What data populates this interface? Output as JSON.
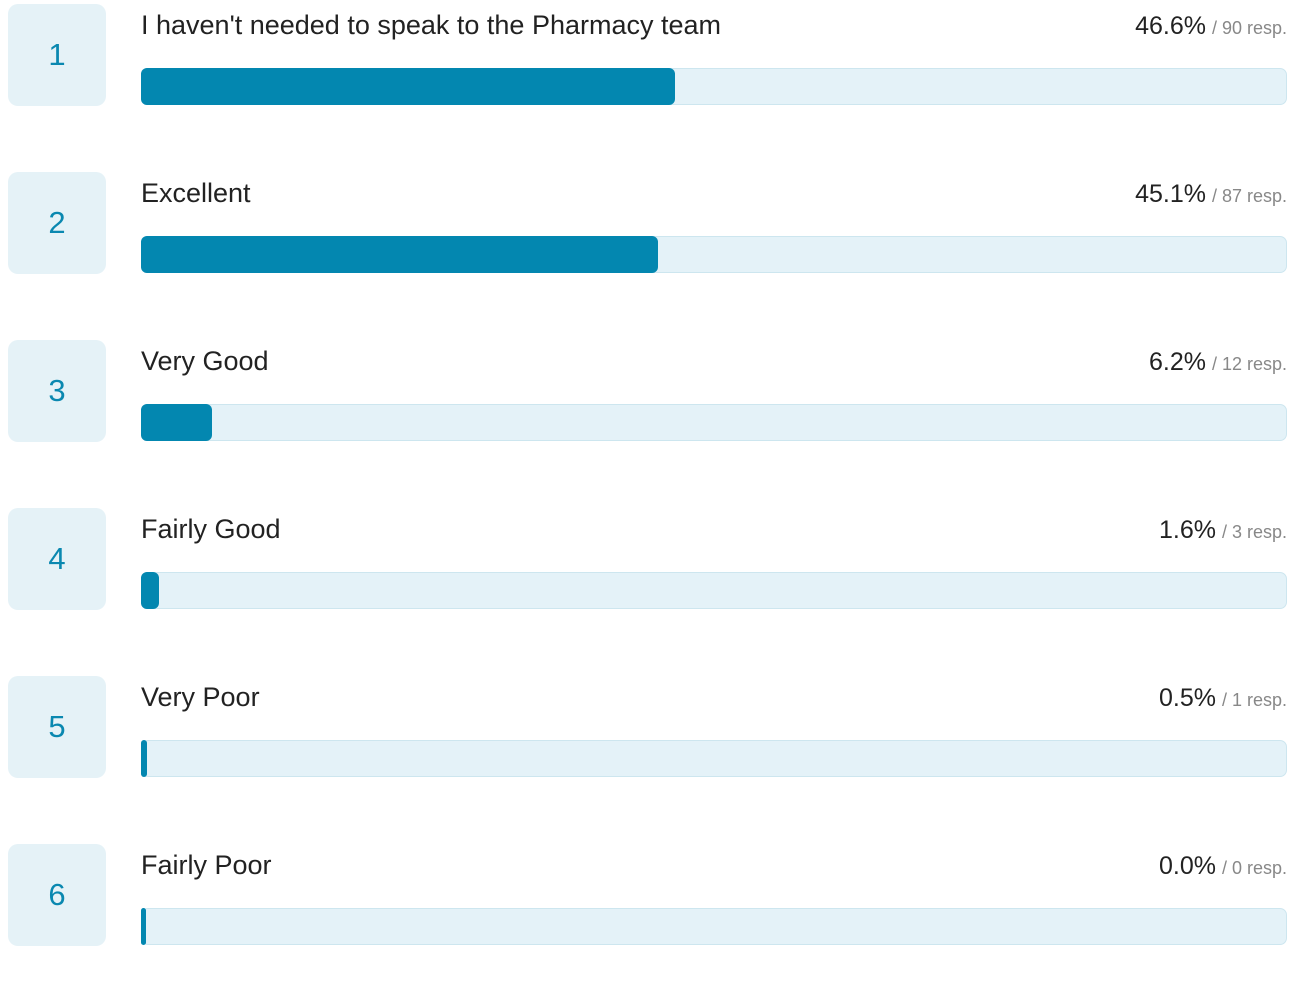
{
  "items": [
    {
      "rank": 1,
      "label": "I haven't needed to speak to the Pharmacy team",
      "percent": 46.6,
      "percent_label": "46.6%",
      "responses": 90,
      "responses_label": "/ 90 resp."
    },
    {
      "rank": 2,
      "label": "Excellent",
      "percent": 45.1,
      "percent_label": "45.1%",
      "responses": 87,
      "responses_label": "/ 87 resp."
    },
    {
      "rank": 3,
      "label": "Very Good",
      "percent": 6.2,
      "percent_label": "6.2%",
      "responses": 12,
      "responses_label": "/ 12 resp."
    },
    {
      "rank": 4,
      "label": "Fairly Good",
      "percent": 1.6,
      "percent_label": "1.6%",
      "responses": 3,
      "responses_label": "/ 3 resp."
    },
    {
      "rank": 5,
      "label": "Very Poor",
      "percent": 0.5,
      "percent_label": "0.5%",
      "responses": 1,
      "responses_label": "/ 1 resp."
    },
    {
      "rank": 6,
      "label": "Fairly Poor",
      "percent": 0.0,
      "percent_label": "0.0%",
      "responses": 0,
      "responses_label": "/ 0 resp."
    }
  ]
}
